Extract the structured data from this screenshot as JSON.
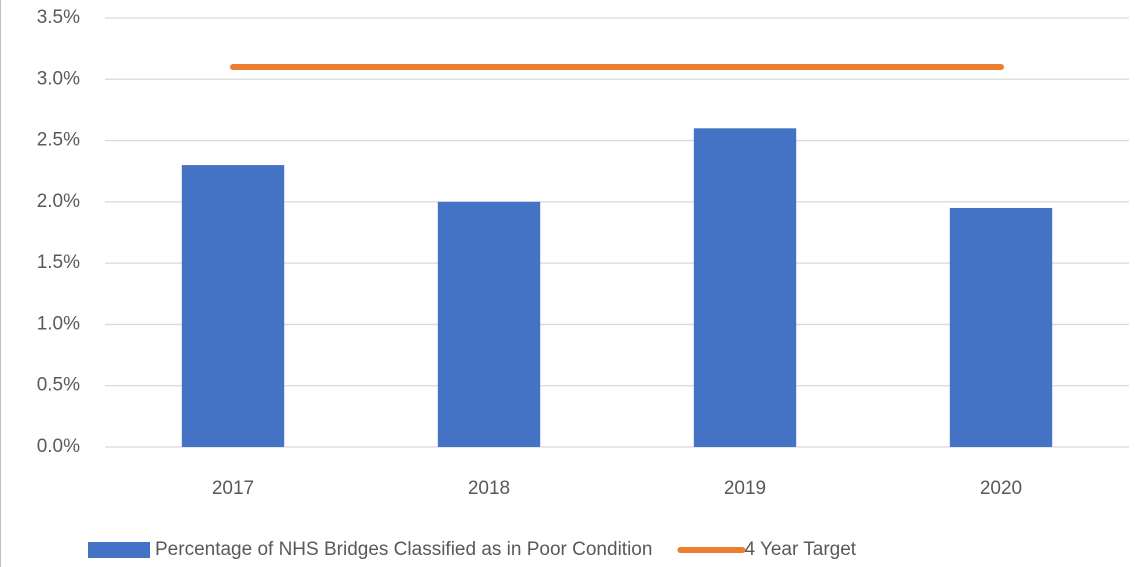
{
  "chart_data": {
    "type": "bar",
    "categories": [
      "2017",
      "2018",
      "2019",
      "2020"
    ],
    "series": [
      {
        "name": "Percentage of NHS Bridges Classified as in Poor Condition",
        "type": "bar",
        "color": "#4472c4",
        "values": [
          2.3,
          2.0,
          2.6,
          1.95
        ]
      },
      {
        "name": "4 Year Target",
        "type": "line",
        "color": "#ed7d31",
        "values": [
          3.1,
          3.1,
          3.1,
          3.1
        ]
      }
    ],
    "ylim": [
      0,
      3.5
    ],
    "yticks": [
      {
        "value": 0,
        "label": "0.0%"
      },
      {
        "value": 0.5,
        "label": "0.5%"
      },
      {
        "value": 1,
        "label": "1.0%"
      },
      {
        "value": 1.5,
        "label": "1.5%"
      },
      {
        "value": 2,
        "label": "2.0%"
      },
      {
        "value": 2.5,
        "label": "2.5%"
      },
      {
        "value": 3,
        "label": "3.0%"
      },
      {
        "value": 3.5,
        "label": "3.5%"
      }
    ],
    "grid": true,
    "legend": "bottom"
  }
}
